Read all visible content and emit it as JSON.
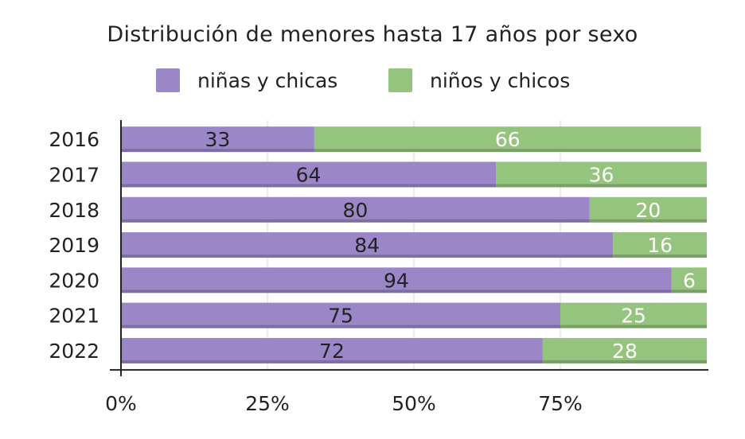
{
  "chart_data": {
    "type": "bar",
    "orientation": "horizontal",
    "stacked": true,
    "title": "Distribución de menores hasta 17 años por sexo",
    "categories": [
      "2016",
      "2017",
      "2018",
      "2019",
      "2020",
      "2021",
      "2022"
    ],
    "series": [
      {
        "name": "niñas y chicas",
        "color": "#9b87c8",
        "values": [
          33,
          64,
          80,
          84,
          94,
          75,
          72
        ]
      },
      {
        "name": "niños y chicos",
        "color": "#95c47f",
        "values": [
          66,
          36,
          20,
          16,
          6,
          25,
          28
        ]
      }
    ],
    "x_ticks": [
      "0%",
      "25%",
      "50%",
      "75%"
    ],
    "xlim": [
      0,
      100
    ],
    "grid": true,
    "legend_position": "top"
  }
}
